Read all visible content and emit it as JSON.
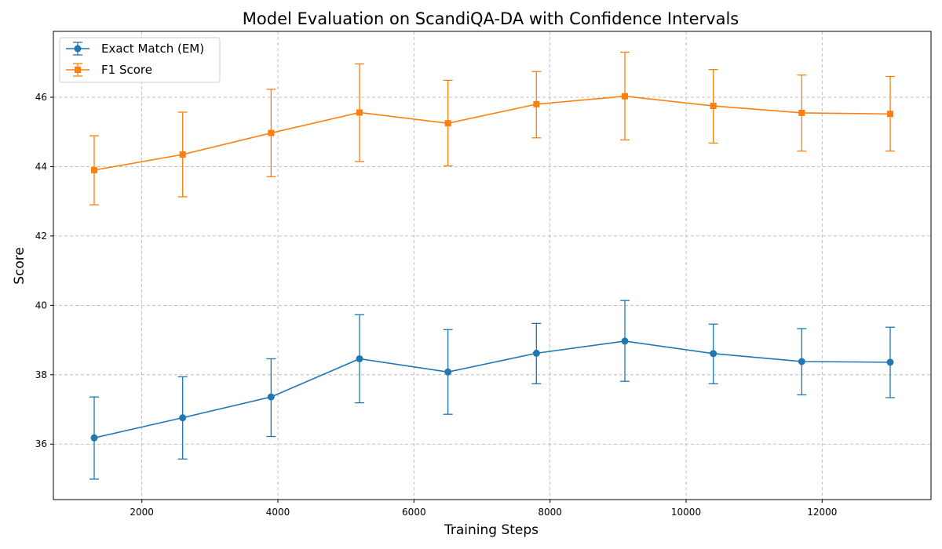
{
  "chart_data": {
    "type": "line",
    "title": "Model Evaluation on ScandiQA-DA with Confidence Intervals",
    "xlabel": "Training Steps",
    "ylabel": "Score",
    "xlim": [
      700,
      13600
    ],
    "ylim": [
      34.4,
      47.9
    ],
    "xticks": [
      2000,
      4000,
      6000,
      8000,
      10000,
      12000
    ],
    "yticks": [
      36,
      38,
      40,
      42,
      44,
      46
    ],
    "grid": true,
    "legend_position": "top-left",
    "x": [
      1300,
      2600,
      3900,
      5200,
      6500,
      7800,
      9100,
      10400,
      11700,
      13000
    ],
    "series": [
      {
        "name": "Exact Match (EM)",
        "marker": "circle",
        "color": "#1f77b4",
        "values": [
          36.18,
          36.76,
          37.36,
          38.46,
          38.08,
          38.62,
          38.97,
          38.61,
          38.38,
          38.36
        ],
        "ci_low": [
          34.99,
          35.57,
          36.22,
          37.19,
          36.86,
          37.74,
          37.81,
          37.74,
          37.42,
          37.34
        ],
        "ci_high": [
          37.36,
          37.94,
          38.46,
          39.73,
          39.3,
          39.48,
          40.14,
          39.46,
          39.33,
          39.37
        ]
      },
      {
        "name": "F1 Score",
        "marker": "square",
        "color": "#ff7f0e",
        "values": [
          43.9,
          44.35,
          44.97,
          45.56,
          45.25,
          45.8,
          46.03,
          45.75,
          45.55,
          45.52
        ],
        "ci_low": [
          42.9,
          43.13,
          43.71,
          44.15,
          44.02,
          44.83,
          44.77,
          44.68,
          44.45,
          44.45
        ],
        "ci_high": [
          44.89,
          45.57,
          46.23,
          46.96,
          46.49,
          46.74,
          47.3,
          46.8,
          46.64,
          46.6
        ]
      }
    ]
  }
}
